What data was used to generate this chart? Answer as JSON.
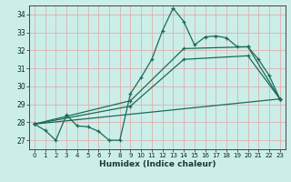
{
  "title": "",
  "xlabel": "Humidex (Indice chaleur)",
  "bg_color": "#cceee8",
  "grid_color": "#ddb0b0",
  "line_color": "#1a6b5a",
  "xlim": [
    -0.5,
    23.5
  ],
  "ylim": [
    26.5,
    34.5
  ],
  "xticks": [
    0,
    1,
    2,
    3,
    4,
    5,
    6,
    7,
    8,
    9,
    10,
    11,
    12,
    13,
    14,
    15,
    16,
    17,
    18,
    19,
    20,
    21,
    22,
    23
  ],
  "yticks": [
    27,
    28,
    29,
    30,
    31,
    32,
    33,
    34
  ],
  "main_x": [
    0,
    1,
    2,
    3,
    4,
    5,
    6,
    7,
    8,
    9,
    10,
    11,
    12,
    13,
    14,
    15,
    16,
    17,
    18,
    19,
    20,
    21,
    22,
    23
  ],
  "main_y": [
    27.9,
    27.55,
    27.0,
    28.4,
    27.8,
    27.75,
    27.5,
    27.0,
    27.0,
    29.6,
    30.5,
    31.5,
    33.1,
    34.35,
    33.6,
    32.3,
    32.75,
    32.8,
    32.7,
    32.2,
    32.2,
    31.5,
    30.6,
    29.3
  ],
  "line2_x": [
    0,
    23
  ],
  "line2_y": [
    27.9,
    29.3
  ],
  "line3_x": [
    0,
    9,
    14,
    20,
    23
  ],
  "line3_y": [
    27.9,
    29.2,
    32.1,
    32.2,
    29.3
  ],
  "line4_x": [
    0,
    9,
    14,
    20,
    23
  ],
  "line4_y": [
    27.9,
    28.9,
    31.5,
    31.7,
    29.3
  ]
}
